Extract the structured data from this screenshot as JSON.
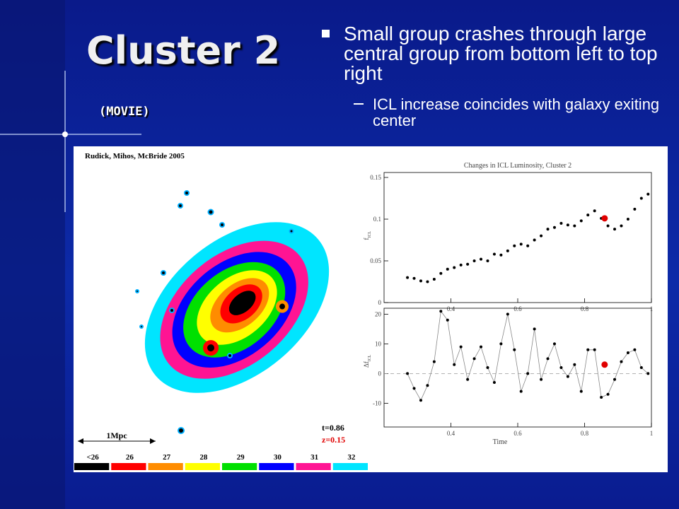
{
  "slide": {
    "title": "Cluster 2",
    "subtitle": "(MOVIE)",
    "bullet": "Small group crashes through large central group from bottom left to top right",
    "sub_bullet": "ICL increase coincides with galaxy exiting center",
    "figure": {
      "credit": "Rudick, Mihos, McBride 2005",
      "scale_label": "1Mpc",
      "time_label": "t=0.86",
      "redshift_label": "z=0.15",
      "colorbar": {
        "labels": [
          "<26",
          "26",
          "27",
          "28",
          "29",
          "30",
          "31",
          "32"
        ],
        "colors": [
          "#000000",
          "#ff0000",
          "#ff8c00",
          "#ffff00",
          "#00e000",
          "#0000ff",
          "#ff1493",
          "#00e5ff"
        ]
      },
      "plots": [
        {
          "type": "scatter",
          "title": "Changes in ICL Luminosity, Cluster 2",
          "y_label": {
            "main": "f",
            "sub": "ICL"
          },
          "x": [
            0.27,
            0.29,
            0.31,
            0.33,
            0.35,
            0.37,
            0.39,
            0.41,
            0.43,
            0.45,
            0.47,
            0.49,
            0.51,
            0.53,
            0.55,
            0.57,
            0.59,
            0.61,
            0.63,
            0.65,
            0.67,
            0.69,
            0.71,
            0.73,
            0.75,
            0.77,
            0.79,
            0.81,
            0.83,
            0.85,
            0.87,
            0.89,
            0.91,
            0.93,
            0.95,
            0.97,
            0.99
          ],
          "values": [
            0.03,
            0.029,
            0.026,
            0.025,
            0.028,
            0.035,
            0.04,
            0.042,
            0.045,
            0.046,
            0.05,
            0.052,
            0.05,
            0.058,
            0.057,
            0.062,
            0.068,
            0.07,
            0.068,
            0.075,
            0.08,
            0.088,
            0.09,
            0.095,
            0.093,
            0.092,
            0.098,
            0.105,
            0.11,
            0.101,
            0.092,
            0.088,
            0.092,
            0.1,
            0.112,
            0.125,
            0.13
          ],
          "highlight": {
            "x": 0.86,
            "value": 0.101,
            "color": "#e00000"
          },
          "color": "#000000",
          "xlim": [
            0.2,
            1
          ],
          "xticks": [
            0.4,
            0.6,
            0.8,
            1
          ],
          "ylim": [
            0,
            0.15
          ],
          "yticks": [
            0,
            0.05,
            0.1,
            0.15
          ]
        },
        {
          "type": "line",
          "x_label": "Time",
          "y_label": {
            "main": "Δf",
            "sub": "ICL"
          },
          "x": [
            0.27,
            0.29,
            0.31,
            0.33,
            0.35,
            0.37,
            0.39,
            0.41,
            0.43,
            0.45,
            0.47,
            0.49,
            0.51,
            0.53,
            0.55,
            0.57,
            0.59,
            0.61,
            0.63,
            0.65,
            0.67,
            0.69,
            0.71,
            0.73,
            0.75,
            0.77,
            0.79,
            0.81,
            0.83,
            0.85,
            0.87,
            0.89,
            0.91,
            0.93,
            0.95,
            0.97,
            0.99
          ],
          "values": [
            0,
            -5,
            -9,
            -4,
            4,
            21,
            18,
            3,
            9,
            -2,
            5,
            9,
            2,
            -3,
            10,
            20,
            8,
            -6,
            0,
            15,
            -2,
            5,
            10,
            2,
            -1,
            3,
            -6,
            8,
            8,
            -8,
            -7,
            -2,
            4,
            7,
            8,
            2,
            0
          ],
          "highlight": {
            "x": 0.86,
            "value": 3,
            "color": "#e00000"
          },
          "color": "#000000",
          "xlim": [
            0.2,
            1
          ],
          "xticks": [
            0.4,
            0.6,
            0.8,
            1
          ],
          "ylim": [
            -18,
            22
          ],
          "yticks": [
            -10,
            0,
            10,
            20
          ]
        }
      ]
    }
  }
}
